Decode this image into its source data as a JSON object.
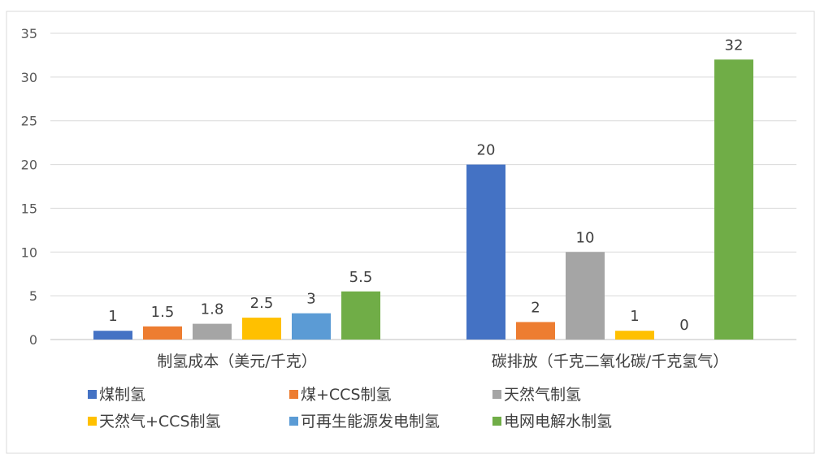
{
  "chart_data": {
    "type": "bar",
    "categories": [
      "制氢成本（美元/千克）",
      "碳排放（千克二氧化碳/千克氢气）"
    ],
    "series": [
      {
        "name": "煤制氢",
        "values": [
          1,
          20
        ],
        "color": "#4472C4"
      },
      {
        "name": "煤+CCS制氢",
        "values": [
          1.5,
          2
        ],
        "color": "#ED7D31"
      },
      {
        "name": "天然气制氢",
        "values": [
          1.8,
          10
        ],
        "color": "#A5A5A5"
      },
      {
        "name": "天然气+CCS制氢",
        "values": [
          2.5,
          1
        ],
        "color": "#FFC000"
      },
      {
        "name": "可再生能源发电制氢",
        "values": [
          3,
          0
        ],
        "color": "#5B9BD5"
      },
      {
        "name": "电网电解水制氢",
        "values": [
          5.5,
          32
        ],
        "color": "#70AD47"
      }
    ],
    "yticks": [
      0,
      5,
      10,
      15,
      20,
      25,
      30,
      35
    ],
    "ylim": [
      0,
      35
    ],
    "grid": true,
    "legend_position": "bottom",
    "data_labels": true
  }
}
